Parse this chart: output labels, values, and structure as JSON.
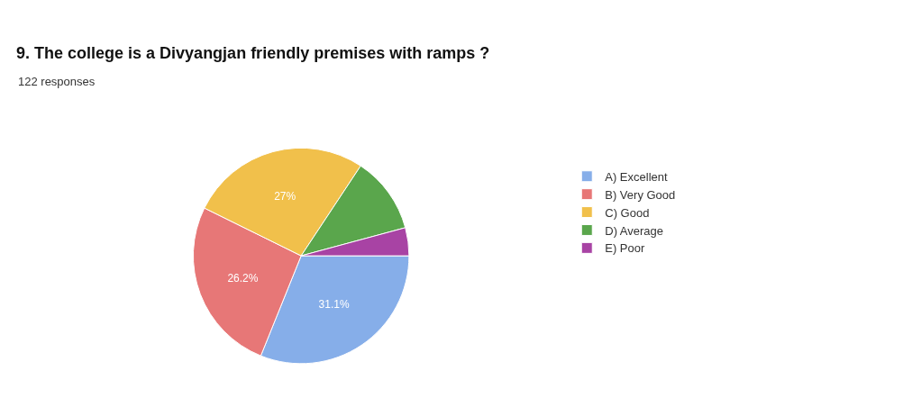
{
  "chart_data": {
    "type": "pie",
    "title": "9. The college is a Divyangjan friendly premises with ramps ?",
    "subtitle": "122 responses",
    "categories": [
      "A) Excellent",
      "B) Very Good",
      "C) Good",
      "D) Average",
      "E) Poor"
    ],
    "values": [
      31.1,
      26.2,
      27,
      11.5,
      4.2
    ],
    "value_labels": [
      "31.1%",
      "26.2%",
      "27%",
      null,
      null
    ],
    "colors": [
      "#86aee9",
      "#e77777",
      "#f1c04b",
      "#5aa64c",
      "#a843a4"
    ],
    "legend": "right"
  }
}
